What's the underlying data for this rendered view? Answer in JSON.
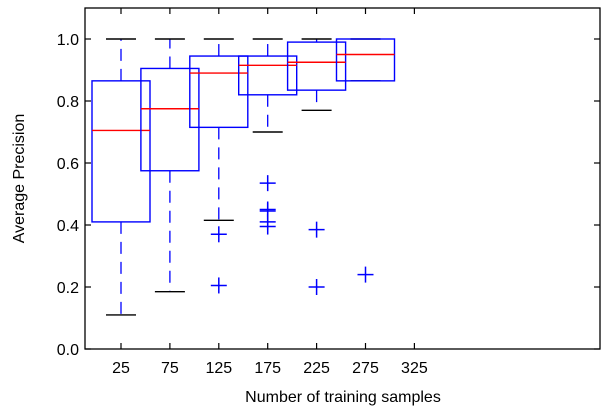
{
  "chart_data": {
    "type": "box",
    "xlabel": "Number of training samples",
    "ylabel": "Average Precision",
    "x_ticks": [
      "25",
      "75",
      "125",
      "175",
      "225",
      "275",
      "325"
    ],
    "y_ticks": [
      "0.0",
      "0.2",
      "0.4",
      "0.6",
      "0.8",
      "1.0"
    ],
    "ylim": [
      0.0,
      1.1
    ],
    "grid": false,
    "colors": {
      "box": "#0000ff",
      "median": "#ff0000",
      "outlier": "#0000ff",
      "whisker_cap": "#000000",
      "frame": "#000000"
    },
    "boxes": [
      {
        "x": 25,
        "whisker_low": 0.11,
        "q1": 0.41,
        "median": 0.705,
        "q3": 0.865,
        "whisker_high": 1.0,
        "outliers": []
      },
      {
        "x": 75,
        "whisker_low": 0.185,
        "q1": 0.575,
        "median": 0.775,
        "q3": 0.905,
        "whisker_high": 1.0,
        "outliers": []
      },
      {
        "x": 125,
        "whisker_low": 0.415,
        "q1": 0.715,
        "median": 0.89,
        "q3": 0.945,
        "whisker_high": 1.0,
        "outliers": [
          0.37,
          0.205
        ]
      },
      {
        "x": 175,
        "whisker_low": 0.7,
        "q1": 0.82,
        "median": 0.915,
        "q3": 0.945,
        "whisker_high": 1.0,
        "outliers": [
          0.535,
          0.45,
          0.445,
          0.41,
          0.395
        ]
      },
      {
        "x": 225,
        "whisker_low": 0.77,
        "q1": 0.835,
        "median": 0.925,
        "q3": 0.99,
        "whisker_high": 1.0,
        "outliers": [
          0.385,
          0.2
        ]
      },
      {
        "x": 275,
        "whisker_low": 0.865,
        "q1": 0.865,
        "median": 0.95,
        "q3": 1.0,
        "whisker_high": 1.0,
        "outliers": [
          0.24
        ]
      }
    ]
  }
}
